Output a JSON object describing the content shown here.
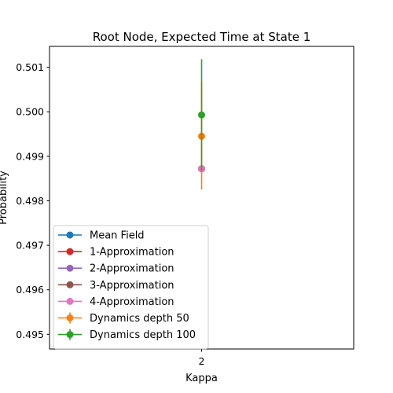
{
  "chart_data": {
    "type": "scatter",
    "title": "Root Node, Expected Time at State 1",
    "xlabel": "Kappa",
    "ylabel": "Probability",
    "x_categories": [
      "2"
    ],
    "ylim": [
      0.49467,
      0.50147
    ],
    "yticks": [
      0.495,
      0.496,
      0.497,
      0.498,
      0.499,
      0.5,
      0.501
    ],
    "ytick_labels": [
      "0.495",
      "0.496",
      "0.497",
      "0.498",
      "0.499",
      "0.500",
      "0.501"
    ],
    "grid": false,
    "legend_position": "lower-left",
    "series": [
      {
        "name": "Mean Field",
        "color": "#1f77b4",
        "x": [
          "2"
        ],
        "y": [
          0.49872
        ],
        "marker": "circle"
      },
      {
        "name": "1-Approximation",
        "color": "#d62728",
        "x": [
          "2"
        ],
        "y": [
          0.49872
        ],
        "marker": "circle"
      },
      {
        "name": "2-Approximation",
        "color": "#9467bd",
        "x": [
          "2"
        ],
        "y": [
          0.49872
        ],
        "marker": "circle"
      },
      {
        "name": "3-Approximation",
        "color": "#8c564b",
        "x": [
          "2"
        ],
        "y": [
          0.49872
        ],
        "marker": "circle"
      },
      {
        "name": "4-Approximation",
        "color": "#e377c2",
        "x": [
          "2"
        ],
        "y": [
          0.49872
        ],
        "marker": "circle"
      },
      {
        "name": "Dynamics depth 50",
        "color": "#ff7f0e",
        "x": [
          "2"
        ],
        "y": [
          0.49945
        ],
        "yerr": [
          0.0012
        ],
        "marker": "circle"
      },
      {
        "name": "Dynamics depth 100",
        "color": "#2ca02c",
        "x": [
          "2"
        ],
        "y": [
          0.49993
        ],
        "yerr": [
          0.00125
        ],
        "marker": "circle"
      }
    ]
  }
}
